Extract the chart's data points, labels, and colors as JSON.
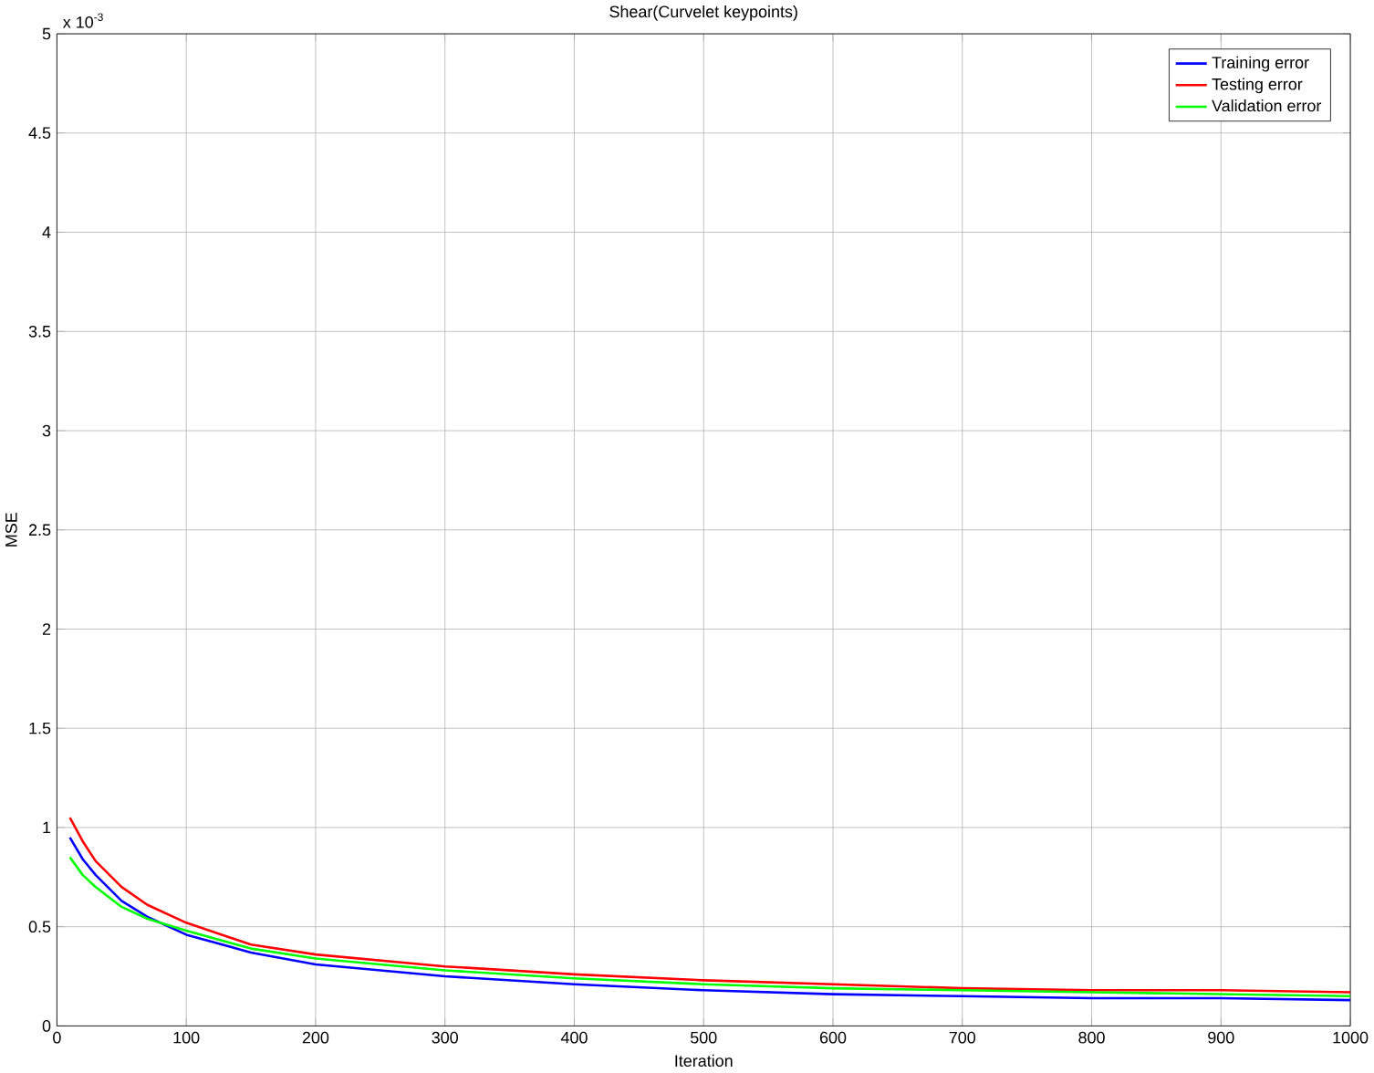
{
  "chart_data": {
    "type": "line",
    "title": "Shear(Curvelet keypoints)",
    "xlabel": "Iteration",
    "ylabel": "MSE",
    "annotations": [
      "x 10$^{-3}$"
    ],
    "x": [
      10,
      20,
      30,
      50,
      70,
      100,
      150,
      200,
      300,
      400,
      500,
      600,
      700,
      800,
      900,
      1000
    ],
    "series": [
      {
        "name": "Training error",
        "color": "#0000ff",
        "values": [
          0.95,
          0.84,
          0.76,
          0.63,
          0.55,
          0.46,
          0.37,
          0.31,
          0.25,
          0.21,
          0.18,
          0.16,
          0.15,
          0.14,
          0.14,
          0.13
        ]
      },
      {
        "name": "Testing error",
        "color": "#ff0000",
        "values": [
          1.05,
          0.93,
          0.83,
          0.7,
          0.61,
          0.52,
          0.41,
          0.36,
          0.3,
          0.26,
          0.23,
          0.21,
          0.19,
          0.18,
          0.18,
          0.17
        ]
      },
      {
        "name": "Validation error",
        "color": "#00ff00",
        "values": [
          0.85,
          0.76,
          0.7,
          0.6,
          0.54,
          0.48,
          0.39,
          0.34,
          0.28,
          0.24,
          0.21,
          0.19,
          0.18,
          0.17,
          0.16,
          0.15
        ]
      }
    ],
    "xlim": [
      0,
      1000
    ],
    "ylim": [
      0,
      5
    ],
    "xticks": [
      0,
      100,
      200,
      300,
      400,
      500,
      600,
      700,
      800,
      900,
      1000
    ],
    "yticks": [
      0,
      0.5,
      1,
      1.5,
      2,
      2.5,
      3,
      3.5,
      4,
      4.5,
      5
    ],
    "grid": true,
    "legend": "top right",
    "line_style": "solid"
  }
}
